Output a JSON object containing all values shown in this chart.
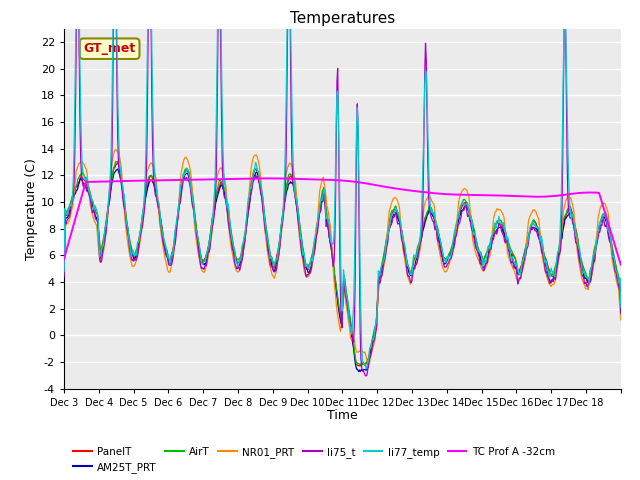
{
  "title": "Temperatures",
  "xlabel": "Time",
  "ylabel": "Temperature (C)",
  "ylim": [
    -4,
    23
  ],
  "yticks": [
    -4,
    -2,
    0,
    2,
    4,
    6,
    8,
    10,
    12,
    14,
    16,
    18,
    20,
    22
  ],
  "x_tick_labels": [
    "Dec 3",
    "Dec 4",
    "Dec 5",
    "Dec 6",
    "Dec 7",
    "Dec 8",
    "Dec 9",
    "Dec 10",
    "Dec 11",
    "Dec 12",
    "Dec 13",
    "Dec 14",
    "Dec 15",
    "Dec 16",
    "Dec 17",
    "Dec 18"
  ],
  "series_colors": {
    "PanelT": "#ff0000",
    "AM25T_PRT": "#0000bb",
    "AirT": "#00bb00",
    "NR01_PRT": "#ff8800",
    "li75_t": "#aa00cc",
    "li77_temp": "#00cccc",
    "TC_Prof": "#ff00ff"
  },
  "annotation_text": "GT_met",
  "annotation_bg": "#ffffcc",
  "annotation_border": "#888800",
  "annotation_text_color": "#cc0000"
}
